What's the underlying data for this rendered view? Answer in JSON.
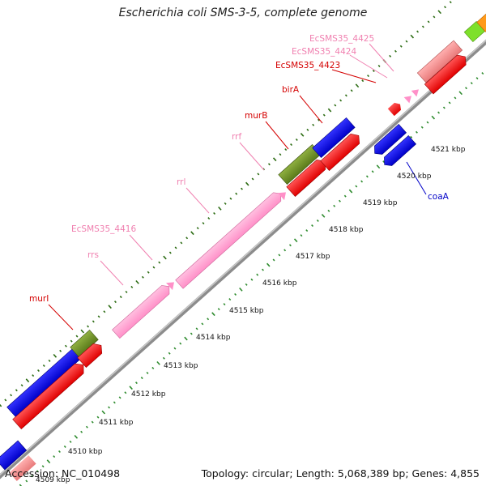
{
  "title": "Escherichia coli SMS-3-5, complete genome",
  "accession": "Accession: NC_010498",
  "summary": "Topology: circular; Length: 5,068,389 bp; Genes: 4,855",
  "colors": {
    "backbone": "#8c8c8c",
    "tick": "#1f7a1f",
    "cds_red": "#ff0000",
    "cds_blue": "#0000e0",
    "rrna_pink": "#ff9ecf",
    "olive": "#6b8e23",
    "salmon": "#f08a8a",
    "green": "#7ee02a",
    "orange": "#ff9a1a",
    "label_red": "#d40000",
    "label_pink": "#f080b0",
    "label_blue": "#0000c8"
  },
  "kbp_labels": [
    "4509 kbp",
    "4510 kbp",
    "4511 kbp",
    "4512 kbp",
    "4513 kbp",
    "4514 kbp",
    "4515 kbp",
    "4516 kbp",
    "4517 kbp",
    "4518 kbp",
    "4519 kbp",
    "4520 kbp",
    "4521 kbp"
  ],
  "genes": {
    "murI": "murI",
    "rrs": "rrs",
    "EcSMS35_4416": "EcSMS35_4416",
    "rrl": "rrl",
    "rrf": "rrf",
    "murB": "murB",
    "birA": "birA",
    "EcSMS35_4423": "EcSMS35_4423",
    "EcSMS35_4424": "EcSMS35_4424",
    "EcSMS35_4425": "EcSMS35_4425",
    "coaA": "coaA"
  }
}
